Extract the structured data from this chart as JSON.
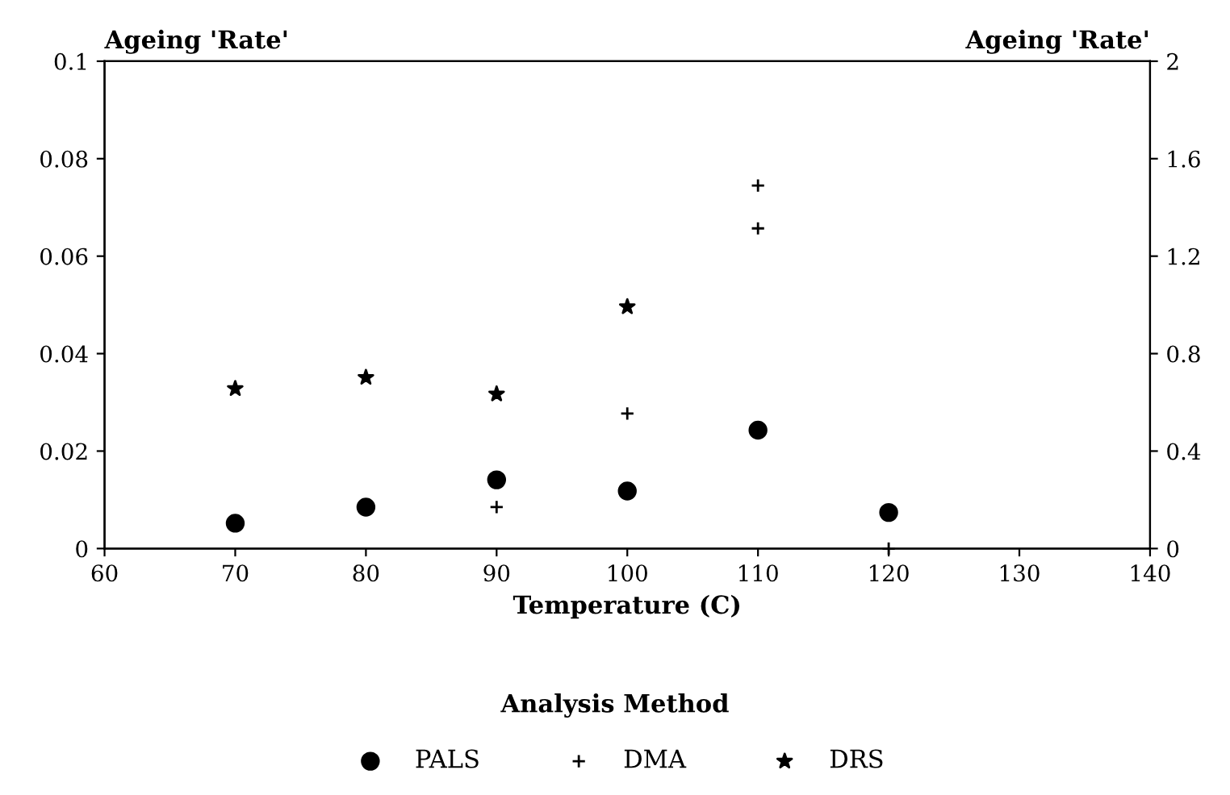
{
  "chart_data": {
    "type": "scatter",
    "xlabel": "Temperature (C)",
    "ylabel": "Ageing 'Rate'",
    "y2label": "Ageing 'Rate'",
    "legend_title": "Analysis Method",
    "xlim": [
      60,
      140
    ],
    "xticks": [
      60,
      70,
      80,
      90,
      100,
      110,
      120,
      130,
      140
    ],
    "ylim": [
      0,
      0.1
    ],
    "yticks": [
      0,
      0.02,
      0.04,
      0.06,
      0.08,
      0.1
    ],
    "y2lim": [
      0,
      2
    ],
    "y2ticks": [
      0,
      0.4,
      0.8,
      1.2,
      1.6,
      2
    ],
    "grid": false,
    "legend": "bottom",
    "series": [
      {
        "name": "PALS",
        "color": "#000000",
        "marker": "circle",
        "x": [
          70,
          80,
          90,
          100,
          110,
          120
        ],
        "values": [
          0.0052,
          0.0085,
          0.0141,
          0.0118,
          0.0243,
          0.0074
        ]
      },
      {
        "name": "DMA",
        "color": "#000000",
        "marker": "cross",
        "x": [
          90,
          100,
          110,
          110,
          120
        ],
        "values": [
          0.0085,
          0.0277,
          0.0657,
          0.0745,
          0
        ]
      },
      {
        "name": "DRS",
        "color": "#000000",
        "marker": "star",
        "x": [
          70,
          80,
          90,
          100
        ],
        "values": [
          0.0328,
          0.0351,
          0.0317,
          0.0496
        ]
      }
    ]
  }
}
